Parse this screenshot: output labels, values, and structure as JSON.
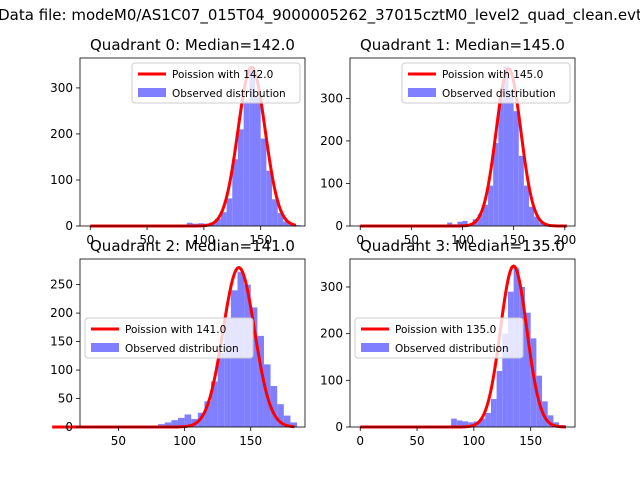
{
  "figure": {
    "suptitle": "Data file: modeM0/AS1C07_015T04_9000005262_37015cztM0_level2_quad_clean.evt"
  },
  "colors": {
    "fit_line": "#ff0000",
    "histogram": "#7f7fff"
  },
  "chart_data": [
    {
      "type": "bar",
      "title": "Quadrant 0: Median=142.0",
      "xlim": [
        -9,
        189
      ],
      "ylim": [
        0,
        365
      ],
      "xticks": [
        0,
        50,
        100,
        150
      ],
      "yticks": [
        0,
        100,
        200,
        300
      ],
      "legend_position": "upper right",
      "median": 142.0,
      "peak": 345,
      "series": [
        {
          "name": "Poission with 142.0",
          "kind": "line"
        },
        {
          "name": "Observed distribution",
          "kind": "histogram"
        }
      ],
      "x": [
        80,
        85,
        90,
        95,
        100,
        105,
        110,
        115,
        120,
        125,
        130,
        135,
        140,
        145,
        150,
        155,
        160,
        165,
        170,
        175,
        180
      ],
      "values": [
        2,
        7,
        5,
        6,
        5,
        8,
        16,
        30,
        60,
        145,
        210,
        272,
        340,
        280,
        190,
        120,
        58,
        28,
        10,
        4,
        2
      ]
    },
    {
      "type": "bar",
      "title": "Quadrant 1: Median=145.0",
      "xlim": [
        -10,
        210
      ],
      "ylim": [
        0,
        395
      ],
      "xticks": [
        0,
        50,
        100,
        150,
        200
      ],
      "yticks": [
        0,
        100,
        200,
        300
      ],
      "legend_position": "upper right",
      "median": 145.0,
      "peak": 370,
      "series": [
        {
          "name": "Poission with 145.0",
          "kind": "line"
        },
        {
          "name": "Observed distribution",
          "kind": "histogram"
        }
      ],
      "x": [
        80,
        85,
        90,
        95,
        100,
        105,
        110,
        115,
        120,
        125,
        130,
        135,
        140,
        145,
        150,
        155,
        160,
        165,
        170,
        175,
        180,
        185
      ],
      "values": [
        2,
        8,
        4,
        10,
        12,
        4,
        16,
        28,
        50,
        95,
        195,
        300,
        375,
        320,
        270,
        165,
        95,
        45,
        22,
        8,
        3,
        1
      ]
    },
    {
      "type": "bar",
      "title": "Quadrant 2: Median=141.0",
      "xlim": [
        21,
        191
      ],
      "ylim": [
        0,
        295
      ],
      "xticks": [
        50,
        100,
        150
      ],
      "yticks": [
        0,
        50,
        100,
        150,
        200,
        250
      ],
      "legend_position": "center left",
      "median": 141.0,
      "peak": 280,
      "series": [
        {
          "name": "Poission with 141.0",
          "kind": "line"
        },
        {
          "name": "Observed distribution",
          "kind": "histogram"
        }
      ],
      "x": [
        80,
        85,
        90,
        95,
        100,
        105,
        110,
        115,
        120,
        125,
        130,
        135,
        140,
        145,
        150,
        155,
        160,
        165,
        170,
        175,
        180
      ],
      "values": [
        5,
        8,
        12,
        16,
        22,
        14,
        25,
        45,
        80,
        130,
        190,
        240,
        272,
        250,
        210,
        160,
        110,
        72,
        40,
        20,
        8
      ]
    },
    {
      "type": "bar",
      "title": "Quadrant 3: Median=135.0",
      "xlim": [
        -9,
        189
      ],
      "ylim": [
        0,
        360
      ],
      "xticks": [
        0,
        50,
        100,
        150
      ],
      "yticks": [
        0,
        100,
        200,
        300
      ],
      "legend_position": "center left",
      "median": 135.0,
      "peak": 345,
      "series": [
        {
          "name": "Poission with 135.0",
          "kind": "line"
        },
        {
          "name": "Observed distribution",
          "kind": "histogram"
        }
      ],
      "x": [
        80,
        85,
        90,
        95,
        100,
        105,
        110,
        115,
        120,
        125,
        130,
        135,
        140,
        145,
        150,
        155,
        160,
        165,
        170,
        175
      ],
      "values": [
        18,
        14,
        12,
        10,
        12,
        18,
        30,
        60,
        120,
        200,
        290,
        340,
        300,
        245,
        190,
        110,
        55,
        25,
        10,
        4
      ]
    }
  ]
}
